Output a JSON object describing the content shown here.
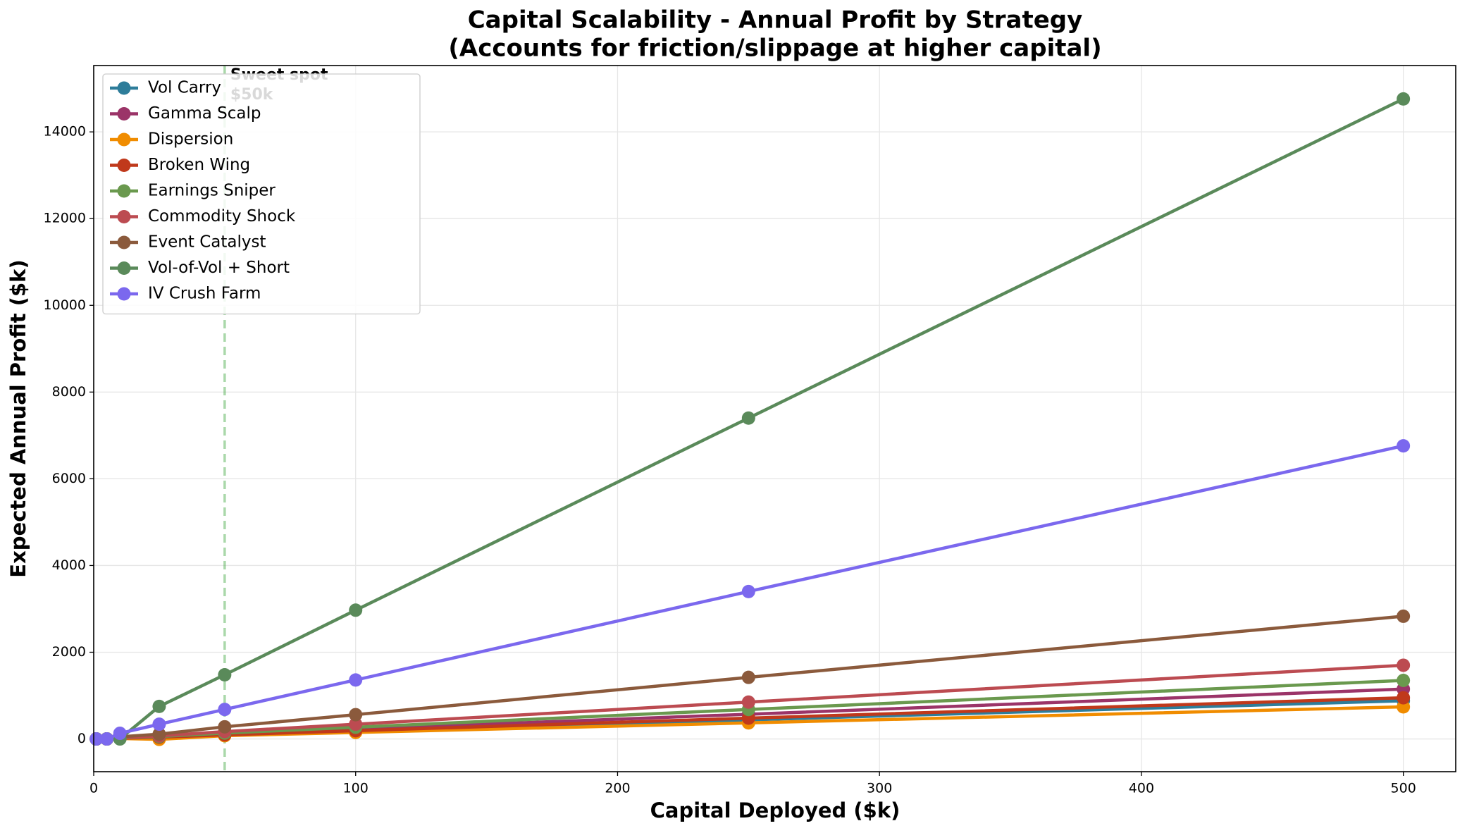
{
  "chart_data": {
    "type": "line",
    "title": [
      "Capital Scalability - Annual Profit by Strategy",
      "(Accounts for friction/slippage at higher capital)"
    ],
    "xlabel": "Capital Deployed ($k)",
    "ylabel": "Expected Annual Profit ($k)",
    "x": [
      1,
      5,
      10,
      25,
      50,
      100,
      250,
      500
    ],
    "series": [
      {
        "name": "Vol Carry",
        "color": "#2e7d9a",
        "values": [
          0,
          0,
          15,
          35,
          90,
          180,
          440,
          880
        ]
      },
      {
        "name": "Gamma Scalp",
        "color": "#9b3468",
        "values": [
          0,
          0,
          20,
          45,
          115,
          230,
          570,
          1150
        ]
      },
      {
        "name": "Dispersion",
        "color": "#f08c00",
        "values": [
          0,
          0,
          10,
          -10,
          75,
          150,
          370,
          740
        ]
      },
      {
        "name": "Broken Wing",
        "color": "#c0391b",
        "values": [
          0,
          0,
          18,
          40,
          95,
          190,
          480,
          950
        ]
      },
      {
        "name": "Earnings Sniper",
        "color": "#6a994e",
        "values": [
          0,
          0,
          25,
          55,
          135,
          270,
          680,
          1350
        ]
      },
      {
        "name": "Commodity Shock",
        "color": "#bc4b51",
        "values": [
          0,
          0,
          30,
          70,
          170,
          340,
          850,
          1700
        ]
      },
      {
        "name": "Event Catalyst",
        "color": "#8b5a3c",
        "values": [
          0,
          0,
          50,
          110,
          280,
          560,
          1420,
          2830
        ]
      },
      {
        "name": "Vol-of-Vol + Short",
        "color": "#5a8a5a",
        "values": [
          0,
          0,
          0,
          750,
          1480,
          2970,
          7400,
          14760
        ]
      },
      {
        "name": "IV Crush Farm",
        "color": "#7b68ee",
        "values": [
          0,
          0,
          130,
          340,
          680,
          1360,
          3400,
          6760
        ]
      }
    ],
    "annotation": {
      "text": [
        "Sweet spot",
        "$50k"
      ],
      "x": 50,
      "color": "#2a9d2a"
    },
    "xlim": [
      0,
      520
    ],
    "ylim": [
      -755,
      15530
    ],
    "xticks": [
      0,
      100,
      200,
      300,
      400,
      500
    ],
    "yticks": [
      0,
      2000,
      4000,
      6000,
      8000,
      10000,
      12000,
      14000
    ],
    "grid": true,
    "legend": "upper left"
  }
}
